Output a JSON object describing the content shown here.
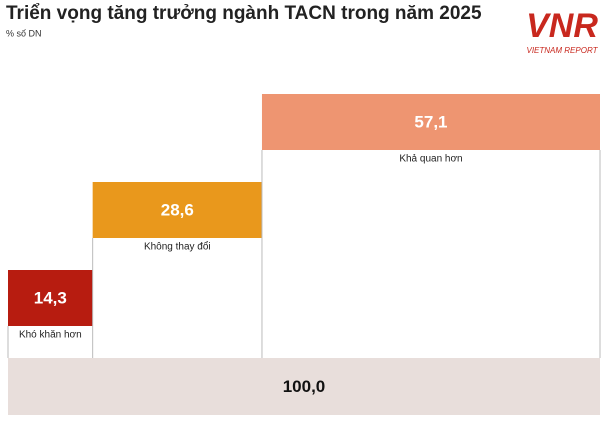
{
  "chart_data": {
    "type": "staircase",
    "title": "Triển vọng tăng trưởng ngành TACN trong năm 2025",
    "subtitle": "% số DN",
    "categories": [
      "Khó khăn hơn",
      "Không thay đổi",
      "Khả quan hơn"
    ],
    "values": [
      14.3,
      28.6,
      57.1
    ],
    "value_labels": [
      "14,3",
      "28,6",
      "57,1"
    ],
    "colors": [
      "#b71c10",
      "#e9981c",
      "#ee9571"
    ],
    "total": 100,
    "total_label": "100,0",
    "total_color": "#e8dedb",
    "xlim": [
      0,
      100
    ]
  },
  "logo": {
    "text": "VNR",
    "subtext": "VIETNAM REPORT"
  }
}
